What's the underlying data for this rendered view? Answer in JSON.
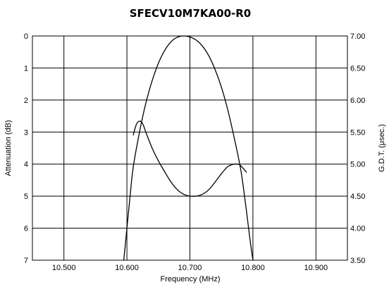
{
  "chart_data": {
    "type": "line",
    "title": "SFECV10M7KA00-R0",
    "xlabel": "Frequency (MHz)",
    "ylabel_left": "Attenuation (dB)",
    "ylabel_right": "G.D.T. (μsec.)",
    "x_range": [
      10.45,
      10.95
    ],
    "y_left_range": [
      0,
      7
    ],
    "y_left_inverted": true,
    "y_right_range": [
      3.5,
      7.0
    ],
    "grid": true,
    "x_ticks": [
      "10.500",
      "10.600",
      "10.700",
      "10.800",
      "10.900"
    ],
    "x_tick_values": [
      10.5,
      10.6,
      10.7,
      10.8,
      10.9
    ],
    "y_left_ticks": [
      "0",
      "1",
      "2",
      "3",
      "4",
      "5",
      "6",
      "7"
    ],
    "y_left_tick_values": [
      0,
      1,
      2,
      3,
      4,
      5,
      6,
      7
    ],
    "y_right_ticks": [
      "7.00",
      "6.50",
      "6.00",
      "5.50",
      "5.00",
      "4.50",
      "4.00",
      "3.50"
    ],
    "y_right_tick_values": [
      7.0,
      6.5,
      6.0,
      5.5,
      5.0,
      4.5,
      4.0,
      3.5
    ],
    "series": [
      {
        "axis": "left",
        "x": [
          10.595,
          10.6,
          10.605,
          10.61,
          10.62,
          10.63,
          10.64,
          10.65,
          10.66,
          10.67,
          10.68,
          10.69,
          10.7,
          10.71,
          10.72,
          10.73,
          10.74,
          10.75,
          10.76,
          10.77,
          10.78,
          10.785,
          10.79,
          10.795,
          10.8
        ],
        "y": [
          7.0,
          6.0,
          5.0,
          4.1,
          3.0,
          2.1,
          1.4,
          0.85,
          0.45,
          0.18,
          0.04,
          0.0,
          0.03,
          0.13,
          0.32,
          0.62,
          1.05,
          1.6,
          2.3,
          3.15,
          4.1,
          4.75,
          5.5,
          6.3,
          7.0
        ]
      },
      {
        "axis": "right",
        "x": [
          10.61,
          10.615,
          10.62,
          10.625,
          10.63,
          10.64,
          10.65,
          10.66,
          10.67,
          10.68,
          10.69,
          10.7,
          10.71,
          10.72,
          10.73,
          10.74,
          10.75,
          10.76,
          10.77,
          10.775,
          10.78,
          10.79
        ],
        "y": [
          5.45,
          5.62,
          5.67,
          5.63,
          5.5,
          5.25,
          5.05,
          4.88,
          4.72,
          4.6,
          4.53,
          4.5,
          4.5,
          4.53,
          4.6,
          4.72,
          4.85,
          4.96,
          5.0,
          5.0,
          4.98,
          4.87
        ]
      }
    ]
  }
}
